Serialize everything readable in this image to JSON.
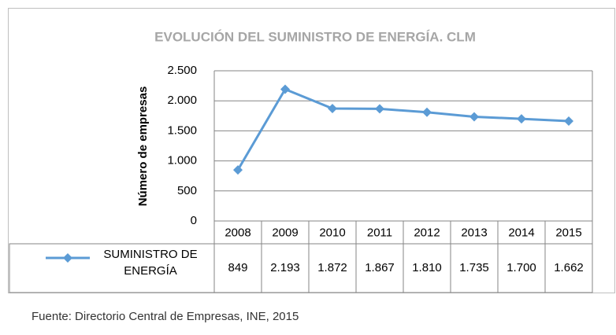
{
  "chart_data": {
    "type": "line",
    "title": "EVOLUCIÓN DEL SUMINISTRO DE ENERGÍA. CLM",
    "y_label": "Número de empresas",
    "source": "Fuente: Directorio Central de Empresas, INE, 2015",
    "categories": [
      "2008",
      "2009",
      "2010",
      "2011",
      "2012",
      "2013",
      "2014",
      "2015"
    ],
    "series": [
      {
        "name": "SUMINISTRO DE ENERGÍA",
        "color": "#5b9bd5",
        "values": [
          849,
          2193,
          1872,
          1867,
          1810,
          1735,
          1700,
          1662
        ],
        "value_labels": [
          "849",
          "2.193",
          "1.872",
          "1.867",
          "1.810",
          "1.735",
          "1.700",
          "1.662"
        ]
      }
    ],
    "ylim": [
      0,
      2500
    ],
    "yticks": [
      0,
      500,
      {
        "value": 1000,
        "label": "1.000"
      },
      {
        "value": 1500,
        "label": "1.500"
      },
      {
        "value": 2000,
        "label": "2.000"
      },
      {
        "value": 2500,
        "label": "2.500"
      }
    ],
    "grid": true
  }
}
